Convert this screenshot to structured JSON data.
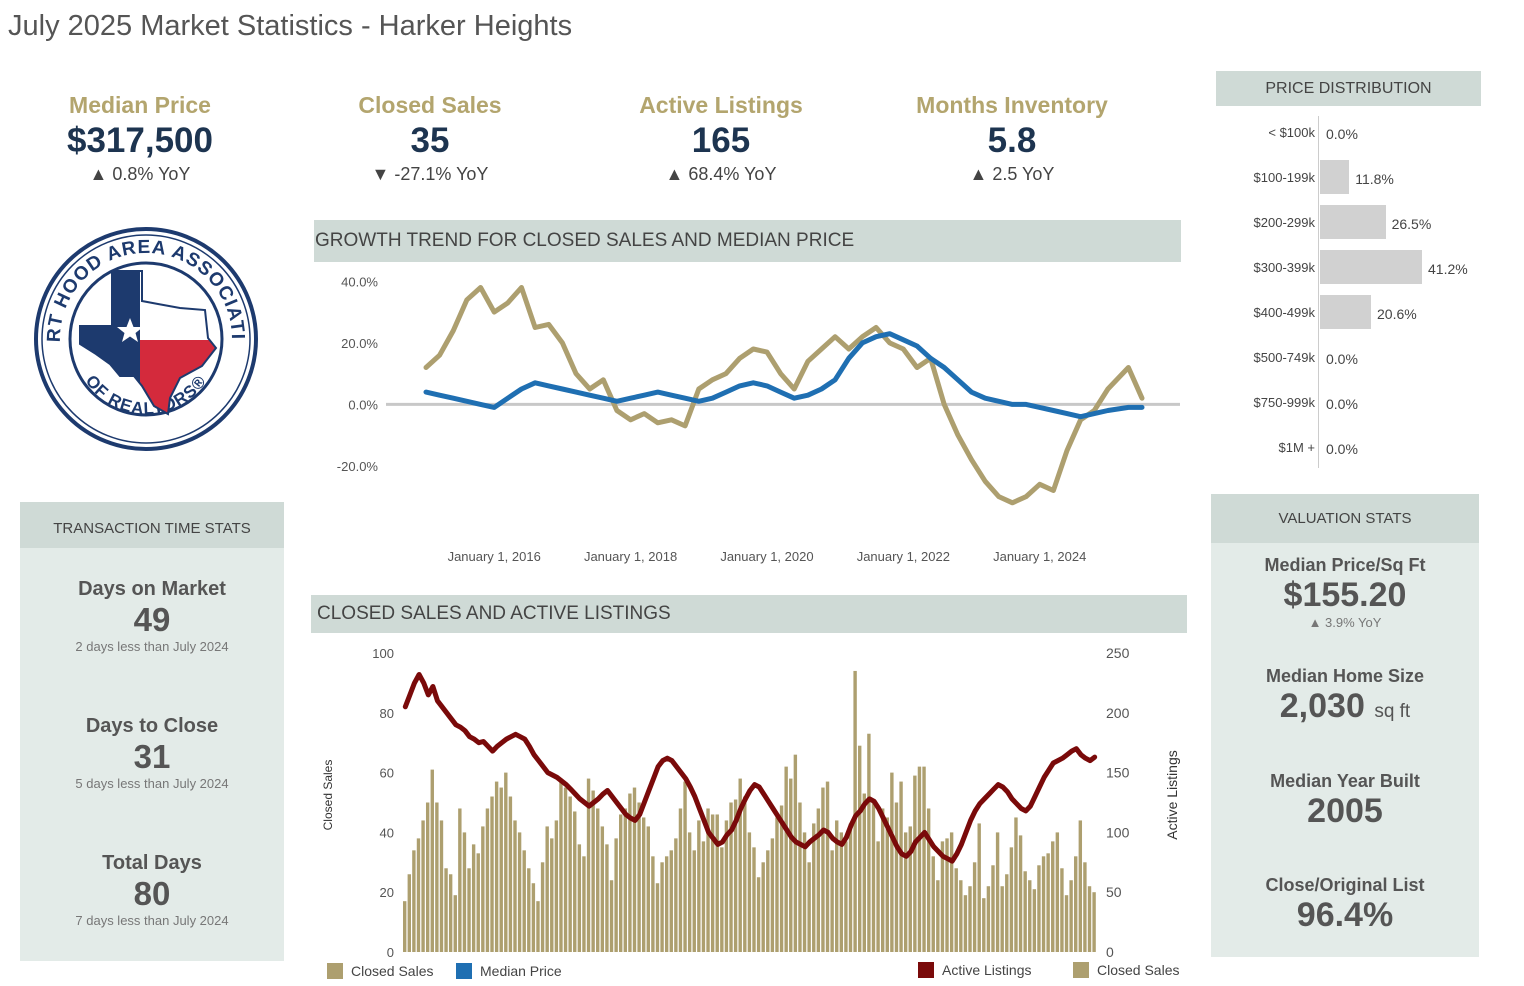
{
  "page": {
    "title": "July 2025 Market Statistics - Harker Heights"
  },
  "kpis": [
    {
      "label": "Median Price",
      "value": "$317,500",
      "yoy": "▲ 0.8% YoY"
    },
    {
      "label": "Closed Sales",
      "value": "35",
      "yoy": "▼ -27.1% YoY"
    },
    {
      "label": "Active Listings",
      "value": "165",
      "yoy": "▲ 68.4% YoY"
    },
    {
      "label": "Months Inventory",
      "value": "5.8",
      "yoy": "▲ 2.5 YoY"
    }
  ],
  "logo": {
    "top_text": "FORT HOOD AREA ASSOCIATION",
    "bottom_text": "OF REALTORS®"
  },
  "transaction": {
    "header": "TRANSACTION TIME STATS",
    "items": [
      {
        "label": "Days on Market",
        "value": "49",
        "sub": "2 days less than July 2024"
      },
      {
        "label": "Days to Close",
        "value": "31",
        "sub": "5 days less than July 2024"
      },
      {
        "label": "Total Days",
        "value": "80",
        "sub": "7 days less than July 2024"
      }
    ]
  },
  "price_distribution": {
    "header": "PRICE DISTRIBUTION",
    "rows": [
      {
        "label": "< $100k",
        "pct": 0.0,
        "text": "0.0%"
      },
      {
        "label": "$100-199k",
        "pct": 11.8,
        "text": "11.8%"
      },
      {
        "label": "$200-299k",
        "pct": 26.5,
        "text": "26.5%"
      },
      {
        "label": "$300-399k",
        "pct": 41.2,
        "text": "41.2%"
      },
      {
        "label": "$400-499k",
        "pct": 20.6,
        "text": "20.6%"
      },
      {
        "label": "$500-749k",
        "pct": 0.0,
        "text": "0.0%"
      },
      {
        "label": "$750-999k",
        "pct": 0.0,
        "text": "0.0%"
      },
      {
        "label": "$1M +",
        "pct": 0.0,
        "text": "0.0%"
      }
    ]
  },
  "valuation": {
    "header": "VALUATION STATS",
    "price_sqft_label": "Median Price/Sq Ft",
    "price_sqft_value": "$155.20",
    "price_sqft_yoy": "▲ 3.9% YoY",
    "home_size_label": "Median Home Size",
    "home_size_value": "2,030",
    "home_size_unit": "sq ft",
    "year_built_label": "Median Year Built",
    "year_built_value": "2005",
    "close_list_label": "Close/Original List",
    "close_list_value": "96.4%"
  },
  "growth": {
    "header": "GROWTH TREND FOR CLOSED SALES AND MEDIAN PRICE",
    "legend": [
      "Closed Sales",
      "Median Price"
    ]
  },
  "closed_active": {
    "header": "CLOSED SALES AND ACTIVE LISTINGS",
    "legend": [
      "Active Listings",
      "Closed Sales"
    ]
  },
  "colors": {
    "gold": "#ad9f6f",
    "blue": "#1f6fb2",
    "maroon": "#7a0a0a",
    "navy": "#1d3450",
    "band": "#cfdad6",
    "panel": "#e3ebe8"
  },
  "chart_data": [
    {
      "type": "line",
      "title": "GROWTH TREND FOR CLOSED SALES AND MEDIAN PRICE",
      "ylim": [
        -35,
        45
      ],
      "y_ticks": [
        "40.0%",
        "20.0%",
        "0.0%",
        "-20.0%"
      ],
      "y_tick_values": [
        40,
        20,
        0,
        -20
      ],
      "x_ticks": [
        "January 1, 2016",
        "January 1, 2018",
        "January 1, 2020",
        "January 1, 2022",
        "January 1, 2024"
      ],
      "x_tick_values": [
        2016,
        2018,
        2020,
        2022,
        2024
      ],
      "x_range": [
        2015,
        2025.5
      ],
      "series": [
        {
          "name": "Closed Sales",
          "color": "#ad9f6f",
          "x": [
            2015.0,
            2015.2,
            2015.4,
            2015.6,
            2015.8,
            2016.0,
            2016.2,
            2016.4,
            2016.6,
            2016.8,
            2017.0,
            2017.2,
            2017.4,
            2017.6,
            2017.8,
            2018.0,
            2018.2,
            2018.4,
            2018.6,
            2018.8,
            2019.0,
            2019.2,
            2019.4,
            2019.6,
            2019.8,
            2020.0,
            2020.2,
            2020.4,
            2020.6,
            2020.8,
            2021.0,
            2021.2,
            2021.4,
            2021.6,
            2021.8,
            2022.0,
            2022.2,
            2022.4,
            2022.6,
            2022.8,
            2023.0,
            2023.2,
            2023.4,
            2023.6,
            2023.8,
            2024.0,
            2024.2,
            2024.4,
            2024.6,
            2024.8,
            2025.0,
            2025.3,
            2025.5
          ],
          "values": [
            12,
            16,
            24,
            34,
            38,
            30,
            33,
            38,
            25,
            26,
            20,
            10,
            5,
            8,
            -2,
            -5,
            -3,
            -6,
            -5,
            -7,
            5,
            8,
            10,
            15,
            18,
            17,
            10,
            5,
            14,
            18,
            22,
            18,
            22,
            25,
            20,
            18,
            12,
            15,
            0,
            -10,
            -18,
            -25,
            -30,
            -32,
            -30,
            -26,
            -28,
            -15,
            -5,
            -2,
            5,
            12,
            2
          ]
        },
        {
          "name": "Median Price",
          "color": "#1f6fb2",
          "x": [
            2015.0,
            2015.2,
            2015.4,
            2015.6,
            2015.8,
            2016.0,
            2016.2,
            2016.4,
            2016.6,
            2016.8,
            2017.0,
            2017.2,
            2017.4,
            2017.6,
            2017.8,
            2018.0,
            2018.2,
            2018.4,
            2018.6,
            2018.8,
            2019.0,
            2019.2,
            2019.4,
            2019.6,
            2019.8,
            2020.0,
            2020.2,
            2020.4,
            2020.6,
            2020.8,
            2021.0,
            2021.2,
            2021.4,
            2021.6,
            2021.8,
            2022.0,
            2022.2,
            2022.4,
            2022.6,
            2022.8,
            2023.0,
            2023.2,
            2023.4,
            2023.6,
            2023.8,
            2024.0,
            2024.2,
            2024.4,
            2024.6,
            2024.8,
            2025.0,
            2025.3,
            2025.5
          ],
          "values": [
            4,
            3,
            2,
            1,
            0,
            -1,
            2,
            5,
            7,
            6,
            5,
            4,
            3,
            2,
            1,
            2,
            3,
            4,
            3,
            2,
            1,
            2,
            4,
            6,
            7,
            6,
            4,
            2,
            3,
            5,
            8,
            15,
            20,
            22,
            23,
            21,
            19,
            15,
            12,
            8,
            4,
            2,
            1,
            0,
            0,
            -1,
            -2,
            -3,
            -4,
            -3,
            -2,
            -1,
            -1
          ]
        }
      ]
    },
    {
      "type": "bar",
      "title": "CLOSED SALES AND ACTIVE LISTINGS",
      "ylabel": "Closed Sales",
      "y2label": "Active Listings",
      "ylim": [
        0,
        100
      ],
      "y_ticks": [
        0,
        20,
        40,
        60,
        80,
        100
      ],
      "y2lim": [
        0,
        250
      ],
      "y2_ticks": [
        0,
        50,
        100,
        150,
        200,
        250
      ],
      "series": [
        {
          "name": "Closed Sales",
          "color": "#ad9f6f",
          "axis": "left",
          "values": [
            17,
            26,
            34,
            38,
            44,
            50,
            61,
            50,
            44,
            28,
            26,
            19,
            48,
            40,
            28,
            36,
            33,
            42,
            48,
            52,
            57,
            55,
            60,
            52,
            44,
            40,
            34,
            28,
            23,
            17,
            30,
            42,
            38,
            44,
            58,
            55,
            52,
            47,
            36,
            32,
            58,
            54,
            48,
            42,
            36,
            24,
            38,
            46,
            48,
            53,
            55,
            50,
            45,
            42,
            32,
            23,
            30,
            32,
            34,
            38,
            48,
            57,
            40,
            34,
            44,
            37,
            48,
            46,
            46,
            35,
            44,
            50,
            51,
            58,
            52,
            40,
            35,
            25,
            30,
            34,
            38,
            45,
            49,
            62,
            58,
            66,
            50,
            40,
            30,
            43,
            48,
            55,
            57,
            34,
            44,
            40,
            37,
            43,
            94,
            69,
            53,
            73,
            50,
            37,
            48,
            45,
            60,
            50,
            57,
            40,
            42,
            59,
            62,
            62,
            48,
            32,
            24,
            37,
            38,
            40,
            28,
            24,
            19,
            22,
            30,
            43,
            18,
            22,
            29,
            40,
            22,
            26,
            35,
            45,
            39,
            27,
            24,
            21,
            29,
            32,
            33,
            37,
            40,
            28,
            19,
            24,
            32,
            44,
            30,
            22,
            20
          ]
        },
        {
          "name": "Active Listings",
          "color": "#7a0a0a",
          "axis": "right",
          "values": [
            205,
            215,
            225,
            232,
            225,
            215,
            222,
            210,
            205,
            200,
            195,
            190,
            188,
            185,
            180,
            178,
            175,
            176,
            172,
            168,
            172,
            175,
            178,
            180,
            182,
            180,
            178,
            172,
            165,
            160,
            155,
            150,
            148,
            146,
            143,
            140,
            136,
            132,
            128,
            125,
            122,
            125,
            128,
            132,
            135,
            130,
            125,
            120,
            115,
            112,
            110,
            115,
            125,
            135,
            145,
            155,
            160,
            162,
            160,
            155,
            150,
            145,
            138,
            130,
            120,
            110,
            100,
            95,
            90,
            92,
            98,
            102,
            110,
            120,
            128,
            135,
            140,
            138,
            132,
            126,
            120,
            114,
            108,
            102,
            96,
            92,
            90,
            88,
            92,
            95,
            98,
            102,
            100,
            95,
            92,
            90,
            96,
            106,
            114,
            118,
            124,
            128,
            126,
            120,
            112,
            104,
            96,
            88,
            82,
            80,
            84,
            92,
            96,
            100,
            94,
            88,
            84,
            80,
            78,
            76,
            82,
            90,
            100,
            110,
            118,
            124,
            128,
            132,
            136,
            140,
            138,
            134,
            128,
            124,
            120,
            118,
            122,
            130,
            138,
            146,
            152,
            158,
            160,
            162,
            165,
            168,
            170,
            165,
            162,
            160,
            163
          ]
        }
      ]
    }
  ]
}
